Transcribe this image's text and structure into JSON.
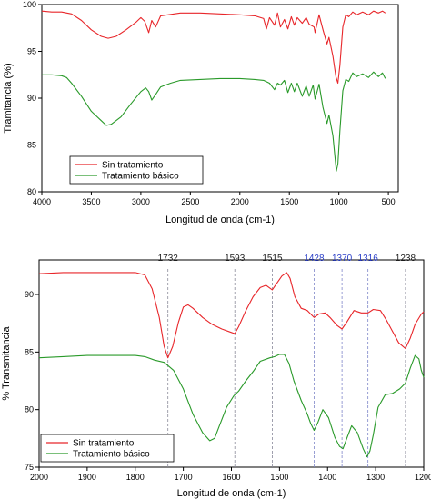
{
  "chart_data": [
    {
      "type": "line",
      "xlabel": "Longitud de onda (cm-1)",
      "ylabel": "Tramitancia (%)",
      "xlim": [
        4000,
        400
      ],
      "ylim": [
        80,
        100
      ],
      "xticks": [
        4000,
        3500,
        3000,
        2500,
        2000,
        1500,
        1000,
        500
      ],
      "yticks": [
        80,
        85,
        90,
        95,
        100
      ],
      "grid": false,
      "legend": "bottom-left",
      "series": [
        {
          "name": "Sin tratamiento",
          "color": "#e8262a",
          "points": [
            [
              4000,
              99.3
            ],
            [
              3900,
              99.2
            ],
            [
              3800,
              99.2
            ],
            [
              3700,
              99.0
            ],
            [
              3600,
              98.3
            ],
            [
              3500,
              97.3
            ],
            [
              3400,
              96.6
            ],
            [
              3330,
              96.4
            ],
            [
              3250,
              96.6
            ],
            [
              3150,
              97.3
            ],
            [
              3050,
              98.1
            ],
            [
              3000,
              98.6
            ],
            [
              2960,
              98.2
            ],
            [
              2920,
              97.0
            ],
            [
              2890,
              98.3
            ],
            [
              2850,
              97.6
            ],
            [
              2800,
              98.8
            ],
            [
              2600,
              99.1
            ],
            [
              2400,
              99.1
            ],
            [
              2200,
              99.0
            ],
            [
              2000,
              98.9
            ],
            [
              1850,
              98.8
            ],
            [
              1760,
              98.5
            ],
            [
              1732,
              97.4
            ],
            [
              1700,
              98.6
            ],
            [
              1650,
              97.8
            ],
            [
              1620,
              99.1
            ],
            [
              1590,
              97.6
            ],
            [
              1550,
              98.4
            ],
            [
              1515,
              97.4
            ],
            [
              1480,
              98.7
            ],
            [
              1450,
              97.8
            ],
            [
              1420,
              98.6
            ],
            [
              1370,
              98.0
            ],
            [
              1330,
              98.6
            ],
            [
              1300,
              97.9
            ],
            [
              1250,
              97.6
            ],
            [
              1240,
              97.0
            ],
            [
              1200,
              98.9
            ],
            [
              1160,
              97.3
            ],
            [
              1120,
              95.8
            ],
            [
              1100,
              96.5
            ],
            [
              1060,
              94.5
            ],
            [
              1030,
              92.3
            ],
            [
              1010,
              91.6
            ],
            [
              990,
              93.5
            ],
            [
              960,
              97.6
            ],
            [
              930,
              98.9
            ],
            [
              900,
              98.7
            ],
            [
              860,
              99.2
            ],
            [
              820,
              98.9
            ],
            [
              760,
              99.2
            ],
            [
              700,
              98.9
            ],
            [
              650,
              99.3
            ],
            [
              600,
              99.1
            ],
            [
              560,
              99.3
            ],
            [
              530,
              99.1
            ]
          ]
        },
        {
          "name": "Tratamiento básico",
          "color": "#2a9a2a",
          "points": [
            [
              4000,
              92.5
            ],
            [
              3900,
              92.5
            ],
            [
              3800,
              92.4
            ],
            [
              3750,
              92.2
            ],
            [
              3700,
              91.6
            ],
            [
              3600,
              90.2
            ],
            [
              3500,
              88.6
            ],
            [
              3400,
              87.6
            ],
            [
              3350,
              87.1
            ],
            [
              3300,
              87.2
            ],
            [
              3200,
              88.0
            ],
            [
              3100,
              89.4
            ],
            [
              3000,
              90.7
            ],
            [
              2950,
              91.1
            ],
            [
              2920,
              90.7
            ],
            [
              2890,
              89.8
            ],
            [
              2850,
              90.4
            ],
            [
              2800,
              91.2
            ],
            [
              2700,
              91.6
            ],
            [
              2600,
              91.9
            ],
            [
              2400,
              92.0
            ],
            [
              2200,
              92.1
            ],
            [
              2000,
              92.1
            ],
            [
              1850,
              92.0
            ],
            [
              1760,
              91.9
            ],
            [
              1700,
              91.6
            ],
            [
              1650,
              90.9
            ],
            [
              1620,
              91.6
            ],
            [
              1590,
              91.4
            ],
            [
              1550,
              91.9
            ],
            [
              1515,
              90.6
            ],
            [
              1480,
              91.6
            ],
            [
              1450,
              90.7
            ],
            [
              1420,
              91.6
            ],
            [
              1370,
              90.2
            ],
            [
              1330,
              91.3
            ],
            [
              1300,
              90.2
            ],
            [
              1260,
              91.4
            ],
            [
              1240,
              89.9
            ],
            [
              1200,
              91.5
            ],
            [
              1160,
              89.0
            ],
            [
              1120,
              87.3
            ],
            [
              1100,
              88.2
            ],
            [
              1060,
              86.0
            ],
            [
              1040,
              83.8
            ],
            [
              1025,
              82.2
            ],
            [
              1010,
              83.0
            ],
            [
              990,
              86.5
            ],
            [
              960,
              90.8
            ],
            [
              930,
              92.0
            ],
            [
              900,
              91.8
            ],
            [
              860,
              92.7
            ],
            [
              820,
              92.3
            ],
            [
              760,
              92.6
            ],
            [
              700,
              92.2
            ],
            [
              650,
              92.8
            ],
            [
              600,
              92.3
            ],
            [
              560,
              92.7
            ],
            [
              530,
              92.1
            ]
          ]
        }
      ]
    },
    {
      "type": "line",
      "xlabel": "Longitud de onda (cm-1)",
      "ylabel": "% Transmitancia",
      "xlim": [
        2000,
        1200
      ],
      "ylim": [
        75,
        93
      ],
      "xticks": [
        2000,
        1900,
        1800,
        1700,
        1600,
        1500,
        1400,
        1300,
        1200
      ],
      "yticks": [
        75,
        80,
        85,
        90
      ],
      "grid": false,
      "legend": "bottom-left",
      "annotations": [
        {
          "x": 1732,
          "label": "1732",
          "color": "#222222"
        },
        {
          "x": 1593,
          "label": "1593",
          "color": "#222222"
        },
        {
          "x": 1515,
          "label": "1515",
          "color": "#222222"
        },
        {
          "x": 1428,
          "label": "1428",
          "color": "#2b3fc7"
        },
        {
          "x": 1370,
          "label": "1370",
          "color": "#2b3fc7"
        },
        {
          "x": 1316,
          "label": "1316",
          "color": "#2b3fc7"
        },
        {
          "x": 1238,
          "label": "1238",
          "color": "#222222"
        }
      ],
      "series": [
        {
          "name": "Sin tratamiento",
          "color": "#e8262a",
          "points": [
            [
              2000,
              91.8
            ],
            [
              1950,
              91.9
            ],
            [
              1900,
              91.9
            ],
            [
              1850,
              91.9
            ],
            [
              1800,
              91.9
            ],
            [
              1780,
              91.7
            ],
            [
              1765,
              90.5
            ],
            [
              1750,
              88.0
            ],
            [
              1740,
              85.5
            ],
            [
              1732,
              84.5
            ],
            [
              1722,
              85.5
            ],
            [
              1710,
              87.6
            ],
            [
              1700,
              88.9
            ],
            [
              1690,
              89.1
            ],
            [
              1680,
              88.8
            ],
            [
              1660,
              88.0
            ],
            [
              1640,
              87.4
            ],
            [
              1620,
              87.0
            ],
            [
              1600,
              86.7
            ],
            [
              1593,
              86.6
            ],
            [
              1585,
              87.2
            ],
            [
              1570,
              88.6
            ],
            [
              1555,
              89.8
            ],
            [
              1540,
              90.6
            ],
            [
              1528,
              90.8
            ],
            [
              1515,
              90.4
            ],
            [
              1505,
              91.0
            ],
            [
              1495,
              91.6
            ],
            [
              1485,
              91.9
            ],
            [
              1478,
              91.4
            ],
            [
              1468,
              89.8
            ],
            [
              1455,
              88.8
            ],
            [
              1442,
              88.6
            ],
            [
              1435,
              88.3
            ],
            [
              1428,
              88.0
            ],
            [
              1418,
              88.3
            ],
            [
              1405,
              88.4
            ],
            [
              1395,
              88.0
            ],
            [
              1380,
              87.3
            ],
            [
              1370,
              87.0
            ],
            [
              1360,
              87.6
            ],
            [
              1345,
              88.6
            ],
            [
              1330,
              88.4
            ],
            [
              1316,
              88.4
            ],
            [
              1305,
              88.7
            ],
            [
              1290,
              88.6
            ],
            [
              1278,
              87.8
            ],
            [
              1265,
              86.8
            ],
            [
              1252,
              85.8
            ],
            [
              1238,
              85.3
            ],
            [
              1228,
              86.2
            ],
            [
              1218,
              87.4
            ],
            [
              1205,
              88.3
            ],
            [
              1200,
              88.5
            ]
          ]
        },
        {
          "name": "Tratamiento básico",
          "color": "#2a9a2a",
          "points": [
            [
              2000,
              84.5
            ],
            [
              1950,
              84.6
            ],
            [
              1900,
              84.7
            ],
            [
              1850,
              84.7
            ],
            [
              1800,
              84.7
            ],
            [
              1780,
              84.6
            ],
            [
              1760,
              84.3
            ],
            [
              1740,
              84.1
            ],
            [
              1720,
              83.4
            ],
            [
              1700,
              81.8
            ],
            [
              1680,
              79.6
            ],
            [
              1660,
              78.0
            ],
            [
              1645,
              77.3
            ],
            [
              1635,
              77.5
            ],
            [
              1625,
              78.6
            ],
            [
              1610,
              80.2
            ],
            [
              1595,
              81.2
            ],
            [
              1585,
              81.6
            ],
            [
              1570,
              82.5
            ],
            [
              1555,
              83.3
            ],
            [
              1540,
              84.2
            ],
            [
              1520,
              84.5
            ],
            [
              1510,
              84.6
            ],
            [
              1500,
              84.8
            ],
            [
              1490,
              84.8
            ],
            [
              1480,
              84.0
            ],
            [
              1470,
              82.5
            ],
            [
              1455,
              80.8
            ],
            [
              1442,
              79.6
            ],
            [
              1435,
              78.8
            ],
            [
              1428,
              78.2
            ],
            [
              1420,
              78.9
            ],
            [
              1410,
              80.0
            ],
            [
              1398,
              79.3
            ],
            [
              1385,
              77.6
            ],
            [
              1375,
              76.8
            ],
            [
              1368,
              76.6
            ],
            [
              1360,
              77.5
            ],
            [
              1350,
              78.6
            ],
            [
              1338,
              78.0
            ],
            [
              1326,
              76.6
            ],
            [
              1318,
              75.9
            ],
            [
              1312,
              76.4
            ],
            [
              1305,
              77.8
            ],
            [
              1295,
              80.2
            ],
            [
              1280,
              81.3
            ],
            [
              1265,
              81.4
            ],
            [
              1250,
              81.8
            ],
            [
              1238,
              82.3
            ],
            [
              1228,
              83.6
            ],
            [
              1218,
              84.7
            ],
            [
              1210,
              84.4
            ],
            [
              1205,
              83.4
            ],
            [
              1200,
              82.8
            ]
          ]
        }
      ]
    }
  ]
}
